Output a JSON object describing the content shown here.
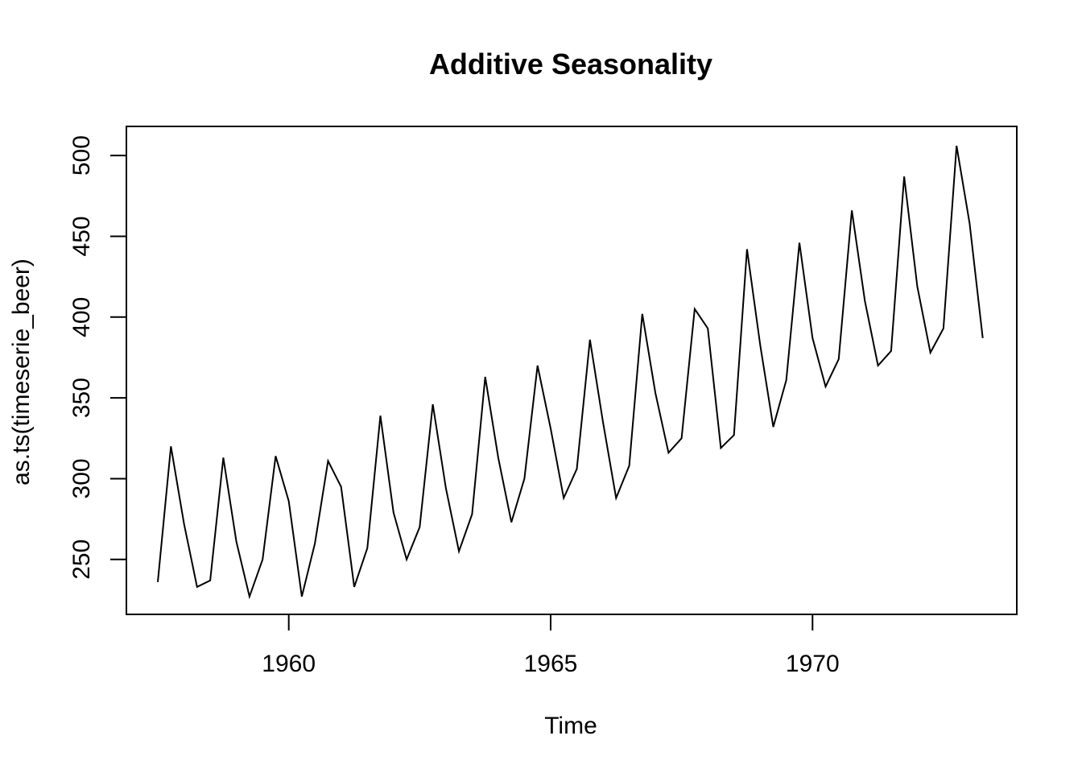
{
  "chart_data": {
    "type": "line",
    "title": "Additive Seasonality",
    "xlabel": "Time",
    "ylabel": "as.ts(timeserie_beer)",
    "x_ticks": [
      1960,
      1965,
      1970
    ],
    "y_ticks": [
      250,
      300,
      350,
      400,
      450,
      500
    ],
    "xlim": [
      1956.9,
      1973.9
    ],
    "ylim": [
      216,
      518
    ],
    "grid": false,
    "legend": "none",
    "start": 1957.5,
    "frequency": 4,
    "series": [
      {
        "values": [
          236,
          320,
          272,
          233,
          237,
          313,
          261,
          227,
          250,
          314,
          286,
          227,
          260,
          311,
          295,
          233,
          257,
          339,
          279,
          250,
          270,
          346,
          294,
          255,
          278,
          363,
          313,
          273,
          300,
          370,
          331,
          288,
          306,
          386,
          335,
          288,
          308,
          402,
          353,
          316,
          325,
          405,
          393,
          319,
          327,
          442,
          383,
          332,
          361,
          446,
          387,
          357,
          374,
          466,
          410,
          370,
          379,
          487,
          419,
          378,
          393,
          506,
          458,
          387
        ]
      }
    ]
  }
}
